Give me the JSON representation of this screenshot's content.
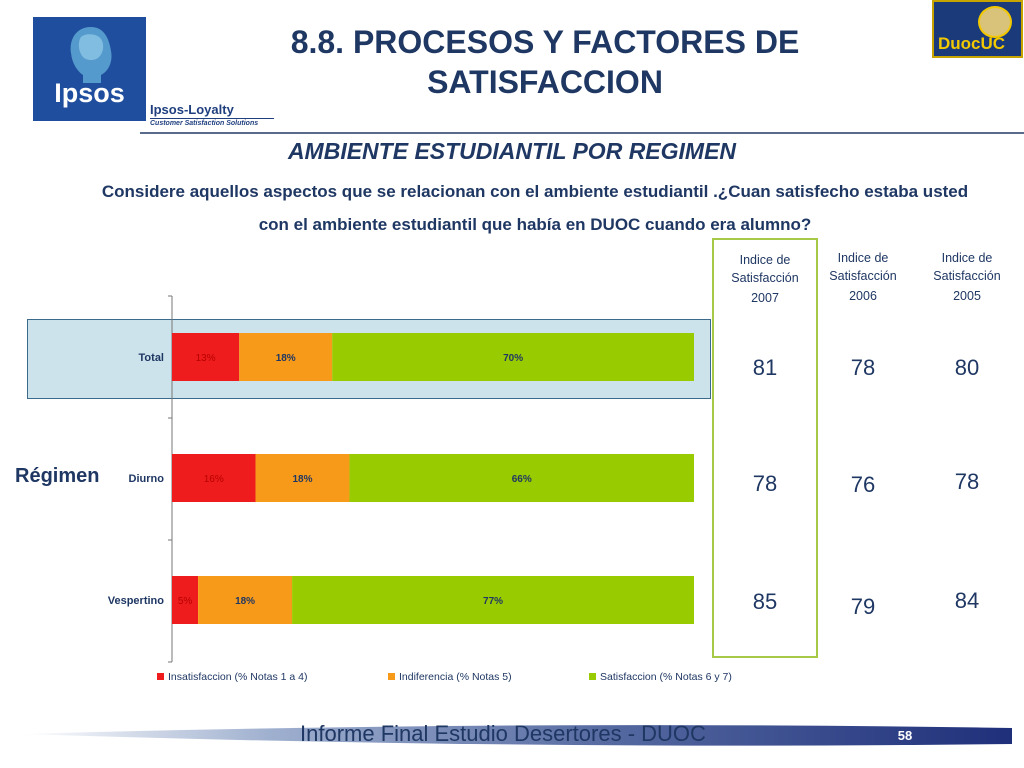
{
  "title": "8.8. PROCESOS Y FACTORES DE SATISFACCION",
  "subtitle": "AMBIENTE ESTUDIANTIL POR REGIMEN",
  "question": "Considere aquellos aspectos que se relacionan con el ambiente estudiantil .¿Cuan satisfecho estaba usted con el ambiente estudiantil que había en DUOC cuando era alumno?",
  "logos": {
    "ipsos": "Ipsos",
    "loyalty": "Ipsos-Loyalty",
    "loyalty_tagline": "Customer Satisfaction Solutions",
    "duoc": "DuocUC"
  },
  "row_group_label": "Régimen",
  "index_columns": [
    {
      "label": "Indice de Satisfacción",
      "year": "2007",
      "values": [
        "81",
        "78",
        "85"
      ]
    },
    {
      "label": "Indice de Satisfacción",
      "year": "2006",
      "values": [
        "78",
        "76",
        "79"
      ]
    },
    {
      "label": "Indice de Satisfacción",
      "year": "2005",
      "values": [
        "80",
        "78",
        "84"
      ]
    }
  ],
  "chart_data": {
    "type": "bar",
    "orientation": "horizontal",
    "stacked": true,
    "categories": [
      "Total",
      "Diurno",
      "Vespertino"
    ],
    "series": [
      {
        "name": "Insatisfaccion (% Notas 1 a 4)",
        "color": "#ee1c1c",
        "values": [
          13,
          16,
          5
        ],
        "labels": [
          "13%",
          "16%",
          "5%"
        ]
      },
      {
        "name": "Indiferencia (% Notas 5)",
        "color": "#f79a1a",
        "values": [
          18,
          18,
          18
        ],
        "labels": [
          "18%",
          "18%",
          "18%"
        ]
      },
      {
        "name": "Satisfaccion (% Notas 6 y 7)",
        "color": "#99cc00",
        "values": [
          70,
          66,
          77
        ],
        "labels": [
          "70%",
          "66%",
          "77%"
        ]
      }
    ],
    "legend_position": "bottom"
  },
  "footer": {
    "text": "Informe Final Estudio Desertores - DUOC",
    "page": "58"
  }
}
